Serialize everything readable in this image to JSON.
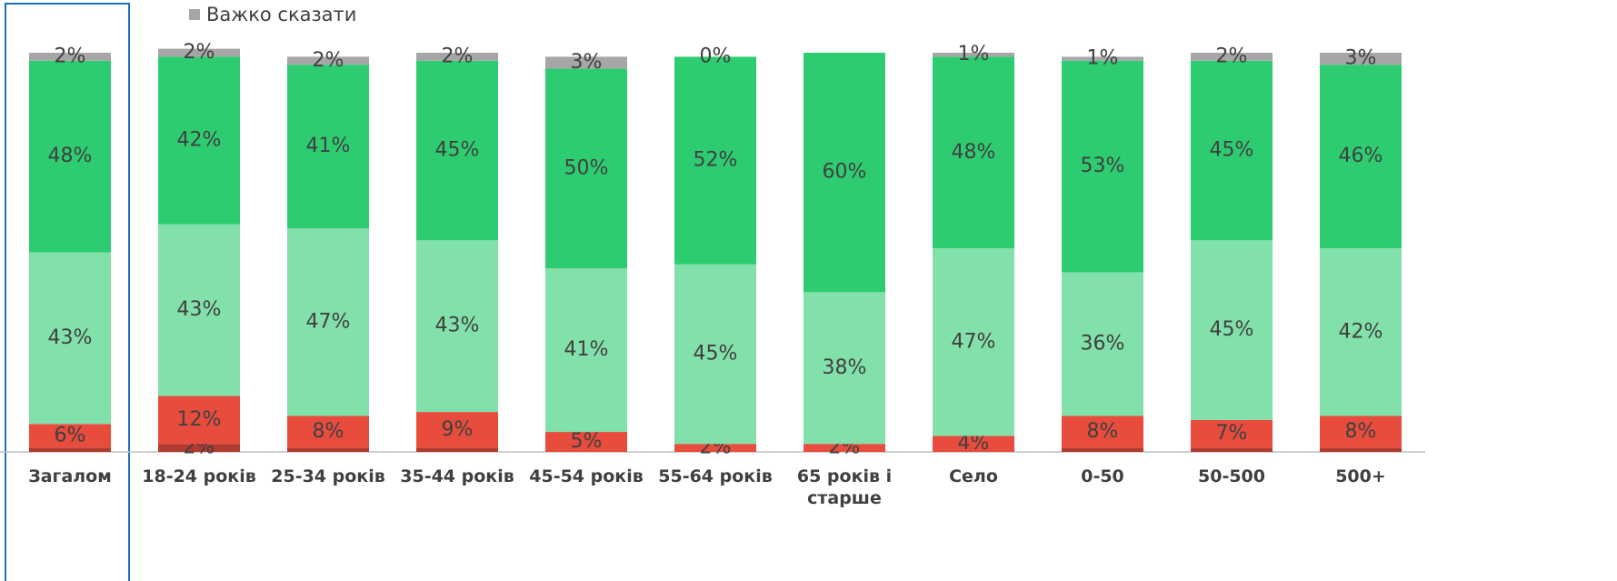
{
  "chart_data": {
    "type": "stacked_bar",
    "categories": [
      "Загалом",
      "18-24 років",
      "25-34 років",
      "35-44 років",
      "45-54 років",
      "55-64 років",
      "65 років і старше",
      "Село",
      "0-50",
      "50-500",
      "500+"
    ],
    "series": [
      {
        "color": "#b03a2e",
        "values": [
          1,
          2,
          1,
          1,
          0,
          0,
          0,
          0,
          1,
          1,
          1
        ],
        "value_labels": [
          null,
          "2%",
          null,
          null,
          null,
          null,
          null,
          null,
          null,
          null,
          null
        ]
      },
      {
        "color": "#e74c3c",
        "values": [
          6,
          12,
          8,
          9,
          5,
          2,
          2,
          4,
          8,
          7,
          8
        ],
        "value_labels": [
          "6%",
          "12%",
          "8%",
          "9%",
          "5%",
          "2%",
          "2%",
          "4%",
          "8%",
          "7%",
          "8%"
        ]
      },
      {
        "color": "#82e0aa",
        "values": [
          43,
          43,
          47,
          43,
          41,
          45,
          38,
          47,
          36,
          45,
          42
        ],
        "value_labels": [
          "43%",
          "43%",
          "47%",
          "43%",
          "41%",
          "45%",
          "38%",
          "47%",
          "36%",
          "45%",
          "42%"
        ]
      },
      {
        "color": "#2ecc71",
        "values": [
          48,
          42,
          41,
          45,
          50,
          52,
          60,
          48,
          53,
          45,
          46
        ],
        "value_labels": [
          "48%",
          "42%",
          "41%",
          "45%",
          "50%",
          "52%",
          "60%",
          "48%",
          "53%",
          "45%",
          "46%"
        ]
      },
      {
        "name": "Важко сказати",
        "color": "#a6a6a6",
        "values": [
          2,
          2,
          2,
          2,
          3,
          0,
          0,
          1,
          1,
          2,
          3
        ],
        "value_labels": [
          "2%",
          "2%",
          "2%",
          "2%",
          "3%",
          "0%",
          null,
          "1%",
          "1%",
          "2%",
          "3%"
        ]
      }
    ],
    "ylim": [
      0,
      100
    ],
    "legend": "top-left"
  }
}
